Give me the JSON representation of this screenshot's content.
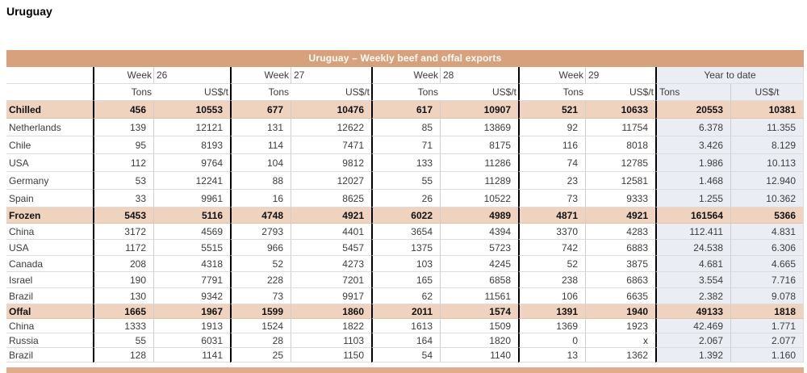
{
  "page_title": "Uruguay",
  "table": {
    "title": "Uruguay – Weekly beef and offal exports",
    "weeks": [
      {
        "label": "Week",
        "number": "26"
      },
      {
        "label": "Week",
        "number": "27"
      },
      {
        "label": "Week",
        "number": "28"
      },
      {
        "label": "Week",
        "number": "29"
      }
    ],
    "year_to_date_label": "Year to date",
    "units": {
      "tons": "Tons",
      "usd_per_ton": "US$/t"
    },
    "columns": [
      "Week 26 Tons",
      "Week 26 US$/t",
      "Week 27 Tons",
      "Week 27 US$/t",
      "Week 28 Tons",
      "Week 28 US$/t",
      "Week 29 Tons",
      "Week 29 US$/t",
      "Year to date Tons",
      "Year to date US$/t"
    ],
    "rows": [
      {
        "label": "Chilled",
        "type": "section",
        "values": [
          "456",
          "10553",
          "677",
          "10476",
          "617",
          "10907",
          "521",
          "10633",
          "20553",
          "10381"
        ]
      },
      {
        "label": "Netherlands",
        "type": "data",
        "values": [
          "139",
          "12121",
          "131",
          "12622",
          "85",
          "13869",
          "92",
          "11754",
          "6.378",
          "11.355"
        ]
      },
      {
        "label": "Chile",
        "type": "data",
        "values": [
          "95",
          "8193",
          "114",
          "7471",
          "71",
          "8175",
          "116",
          "8018",
          "3.426",
          "8.129"
        ]
      },
      {
        "label": "USA",
        "type": "data",
        "values": [
          "112",
          "9764",
          "104",
          "9812",
          "133",
          "11286",
          "74",
          "12785",
          "1.986",
          "10.113"
        ]
      },
      {
        "label": "Germany",
        "type": "data",
        "values": [
          "53",
          "12241",
          "88",
          "12027",
          "55",
          "11289",
          "23",
          "12581",
          "1.468",
          "12.940"
        ]
      },
      {
        "label": "Spain",
        "type": "data",
        "values": [
          "33",
          "9961",
          "16",
          "8625",
          "26",
          "10522",
          "73",
          "9333",
          "1.255",
          "10.362"
        ]
      },
      {
        "label": "Frozen",
        "type": "section",
        "values": [
          "5453",
          "5116",
          "4748",
          "4921",
          "6022",
          "4989",
          "4871",
          "4921",
          "161564",
          "5366"
        ]
      },
      {
        "label": "China",
        "type": "data",
        "values": [
          "3172",
          "4569",
          "2793",
          "4401",
          "3654",
          "4394",
          "3370",
          "4283",
          "112.411",
          "4.831"
        ]
      },
      {
        "label": "USA",
        "type": "data",
        "values": [
          "1172",
          "5515",
          "966",
          "5457",
          "1375",
          "5723",
          "742",
          "6883",
          "24.538",
          "6.306"
        ]
      },
      {
        "label": "Canada",
        "type": "data",
        "values": [
          "208",
          "4318",
          "52",
          "4273",
          "103",
          "4245",
          "52",
          "3875",
          "4.681",
          "4.665"
        ]
      },
      {
        "label": "Israel",
        "type": "data",
        "values": [
          "190",
          "7791",
          "228",
          "7201",
          "165",
          "6858",
          "238",
          "6863",
          "3.554",
          "7.716"
        ]
      },
      {
        "label": "Brazil",
        "type": "data",
        "values": [
          "130",
          "9342",
          "73",
          "9917",
          "62",
          "11561",
          "106",
          "6635",
          "2.382",
          "9.078"
        ]
      },
      {
        "label": "Offal",
        "type": "section",
        "values": [
          "1665",
          "1967",
          "1599",
          "1860",
          "2011",
          "1574",
          "1391",
          "1940",
          "49133",
          "1818"
        ]
      },
      {
        "label": "China",
        "type": "data",
        "values": [
          "1333",
          "1913",
          "1524",
          "1822",
          "1613",
          "1509",
          "1369",
          "1923",
          "42.469",
          "1.771"
        ]
      },
      {
        "label": "Russia",
        "type": "data",
        "values": [
          "55",
          "6031",
          "28",
          "1103",
          "164",
          "1820",
          "0",
          "x",
          "2.067",
          "2.077"
        ]
      },
      {
        "label": "Brazil",
        "type": "data",
        "values": [
          "128",
          "1141",
          "25",
          "1150",
          "54",
          "1140",
          "13",
          "1362",
          "1.392",
          "1.160"
        ]
      }
    ]
  },
  "colors": {
    "banner_bg": "#D7A17D",
    "banner_text": "#FFFDF5",
    "section_row_bg": "#F0D3BF",
    "year_to_date_bg": "#EAEEF4",
    "grid_line": "#DCDCDC",
    "group_divider": "#000000",
    "bottom_banner_bg": "#DFAD8B"
  }
}
